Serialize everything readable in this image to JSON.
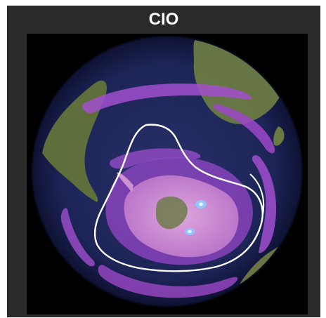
{
  "title": "CIO",
  "colors": {
    "frame": "#2a2a2a",
    "space": "#000000",
    "ocean": "#1b2050",
    "land": "#5a6b3a",
    "land_light": "#8a9a6a",
    "plume_purple": "#a14fd0",
    "plume_pink": "#d79ad8",
    "outline": "#ffffff"
  }
}
